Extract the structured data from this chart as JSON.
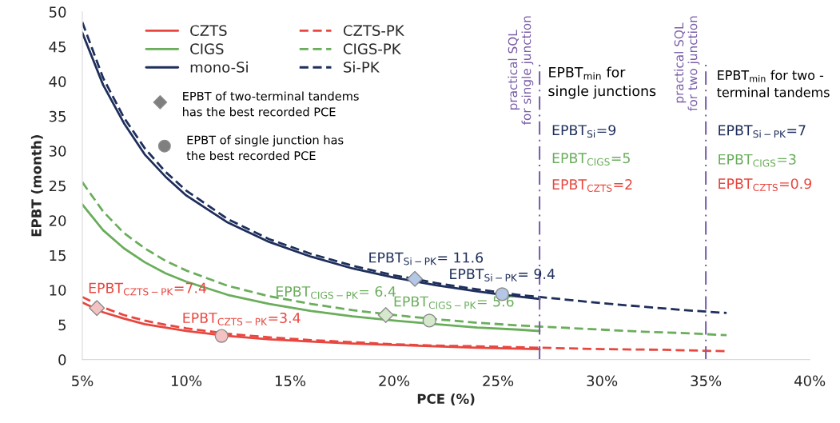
{
  "chart_data": {
    "type": "line",
    "xlabel": "PCE (%)",
    "ylabel": "EPBT (month)",
    "xlim": [
      5,
      40
    ],
    "ylim": [
      0,
      50
    ],
    "xticks": [
      {
        "value": 5,
        "label": "5%"
      },
      {
        "value": 10,
        "label": "10%"
      },
      {
        "value": 15,
        "label": "15%"
      },
      {
        "value": 20,
        "label": "20%"
      },
      {
        "value": 25,
        "label": "25%"
      },
      {
        "value": 30,
        "label": "30%"
      },
      {
        "value": 35,
        "label": "35%"
      },
      {
        "value": 40,
        "label": "40%"
      }
    ],
    "yticks": [
      0,
      5,
      10,
      15,
      20,
      25,
      30,
      35,
      40,
      45,
      50
    ],
    "grid": false,
    "legend": "top left",
    "series": [
      {
        "name": "CZTS",
        "color": "#e8473f",
        "line_style": "solid",
        "x": [
          5,
          6,
          7,
          8,
          9,
          10,
          12,
          14,
          16,
          18,
          20,
          22,
          24,
          27
        ],
        "values": [
          8.2,
          6.8,
          5.9,
          5.1,
          4.6,
          4.1,
          3.4,
          2.9,
          2.6,
          2.3,
          2.1,
          1.9,
          1.7,
          1.5
        ]
      },
      {
        "name": "CIGS",
        "color": "#6aae5c",
        "line_style": "solid",
        "x": [
          5,
          6,
          7,
          8,
          9,
          10,
          12,
          14,
          16,
          18,
          20,
          22,
          24,
          26,
          27
        ],
        "values": [
          22.3,
          18.6,
          16,
          14,
          12.4,
          11.2,
          9.3,
          8,
          7,
          6.2,
          5.6,
          5.1,
          4.6,
          4.3,
          4.1
        ]
      },
      {
        "name": "mono-Si",
        "color": "#1f2f5c",
        "line_style": "solid",
        "x": [
          5,
          6,
          7,
          8,
          9,
          10,
          12,
          14,
          16,
          18,
          20,
          22,
          24,
          25,
          27
        ],
        "values": [
          47,
          39.5,
          34,
          29.5,
          26.3,
          23.6,
          19.7,
          16.9,
          14.8,
          13.1,
          11.8,
          10.7,
          9.8,
          9.4,
          8.7
        ]
      },
      {
        "name": "CZTS-PK",
        "color": "#e8473f",
        "line_style": "dashed",
        "x": [
          5,
          6,
          7,
          8,
          9,
          10,
          12,
          14,
          16,
          18,
          20,
          22,
          24,
          27,
          30,
          33,
          36
        ],
        "values": [
          9,
          7.5,
          6.4,
          5.6,
          5,
          4.5,
          3.7,
          3.2,
          2.8,
          2.5,
          2.2,
          2,
          1.9,
          1.7,
          1.5,
          1.4,
          1.2
        ]
      },
      {
        "name": "CIGS-PK",
        "color": "#6aae5c",
        "line_style": "dashed",
        "x": [
          5,
          6,
          7,
          8,
          9,
          10,
          12,
          14,
          16,
          18,
          20,
          22,
          24,
          26,
          28,
          30,
          32,
          34,
          36
        ],
        "values": [
          25.5,
          21.3,
          18.2,
          16,
          14.2,
          12.8,
          10.6,
          9.1,
          8,
          7.1,
          6.4,
          5.8,
          5.3,
          4.9,
          4.6,
          4.3,
          4,
          3.8,
          3.5
        ]
      },
      {
        "name": "Si-PK",
        "color": "#1f2f5c",
        "line_style": "dashed",
        "x": [
          5,
          6,
          7,
          8,
          9,
          10,
          12,
          14,
          16,
          18,
          20,
          21,
          22,
          24,
          26,
          28,
          30,
          32,
          34,
          36
        ],
        "values": [
          48.5,
          40.5,
          34.8,
          30.4,
          27,
          24.3,
          20.2,
          17.3,
          15.2,
          13.5,
          12.1,
          11.6,
          11,
          10.1,
          9.3,
          8.7,
          8.1,
          7.6,
          7.1,
          6.7
        ]
      },
      {
        "type": "scatter",
        "marker": "diamond",
        "x": [
          5.7,
          19.6,
          21
        ],
        "values": [
          7.4,
          6.4,
          11.6
        ],
        "colors": [
          "#f4c2c2",
          "#d5e8cc",
          "#b4c7e7"
        ],
        "value_labels": [
          "EPBT$_{CZTS−PK}$=7.4",
          "EPBT$_{CIGS−PK}$= 6.4",
          "EPBT$_{Si−PK}$= 11.6"
        ]
      },
      {
        "type": "scatter",
        "marker": "circle",
        "x": [
          11.7,
          21.7,
          25.2
        ],
        "values": [
          3.4,
          5.6,
          9.4
        ],
        "colors": [
          "#f4c2c2",
          "#d5e8cc",
          "#b4c7e7"
        ],
        "value_labels": [
          "EPBT$_{CZTS−PK}$=3.4",
          "EPBT$_{CIGS−PK}$= 5.6",
          "EPBT$_{Si−PK}$= 9.4"
        ]
      }
    ],
    "ref_lines": [
      {
        "axis": "x",
        "value": 27,
        "label": "practical SQL\nfor single junction",
        "color": "#7a5fa8",
        "line_style": "dashdot"
      },
      {
        "axis": "x",
        "value": 35,
        "label": "practical SQL\nfor two junction",
        "color": "#7a5fa8",
        "line_style": "dashdot"
      }
    ],
    "annotations": [
      "EPBT of two-terminal tandems\nhas the best recorded PCE",
      "EPBT of single junction has\nthe best recorded PCE",
      "EPBT$_{min}$ for\nsingle junctions",
      "EPBT$_{Si}$=9",
      "EPBT$_{CIGS}$=5",
      "EPBT$_{CZTS}$=2",
      "EPBT$_{min}$ for two -\nterminal tandems",
      "EPBT$_{Si−PK}$=7",
      "EPBT$_{CIGS}$=3",
      "EPBT$_{CZTS}$=0.9"
    ]
  }
}
